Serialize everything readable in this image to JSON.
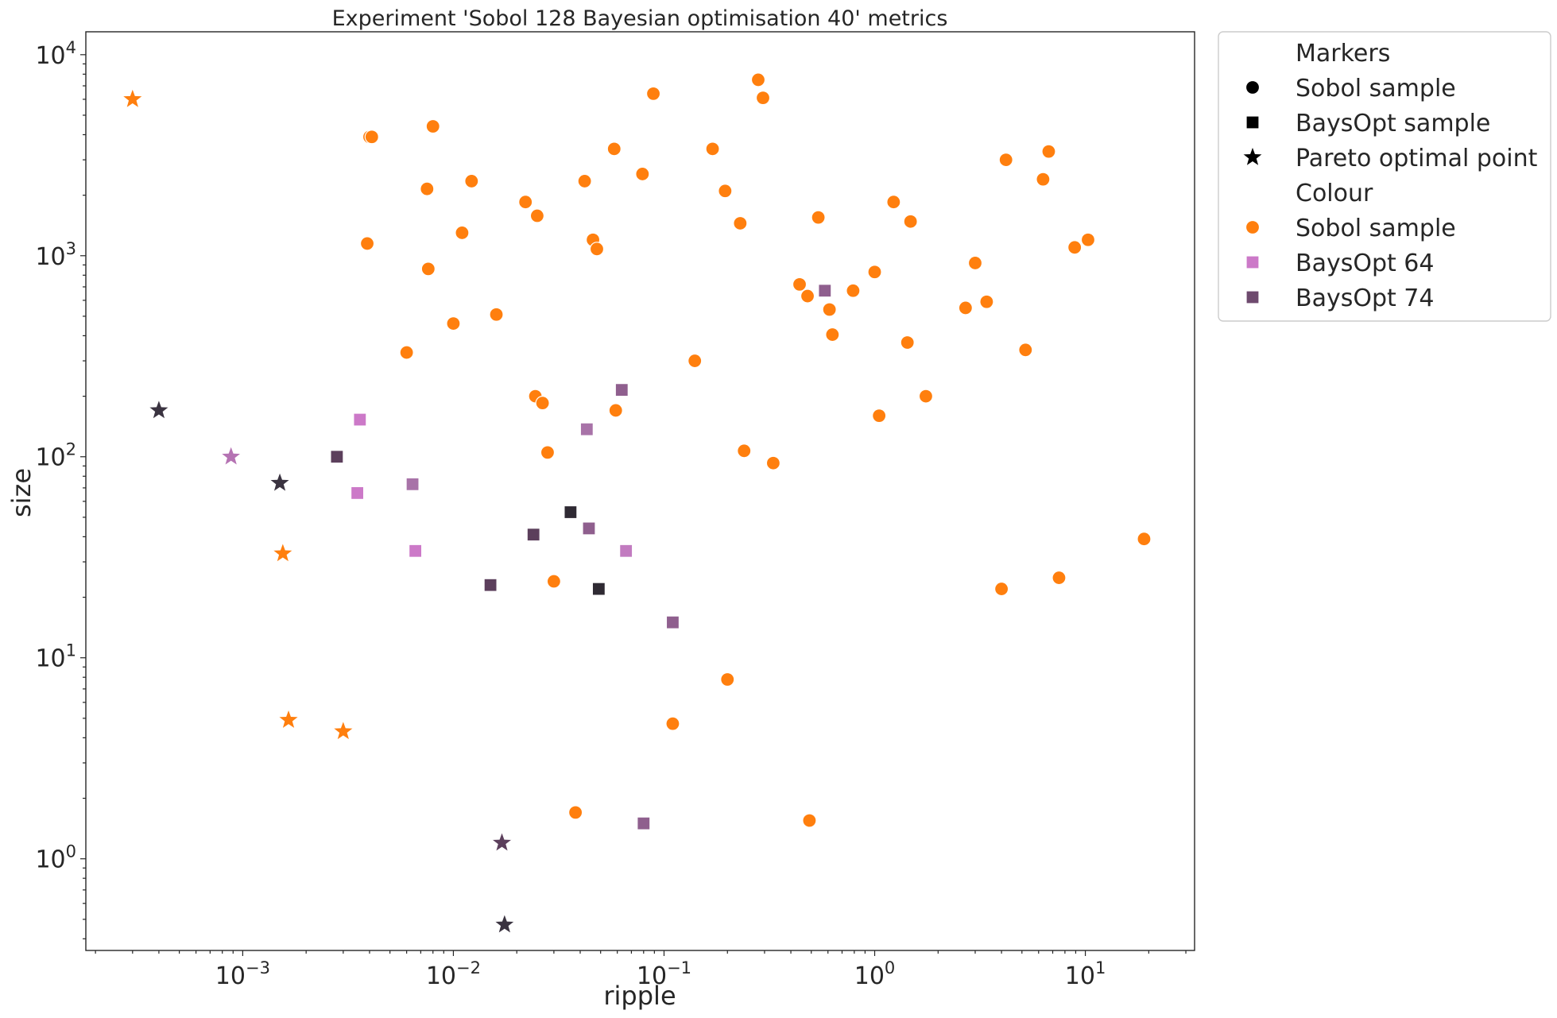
{
  "chart_data": {
    "type": "scatter",
    "title": "Experiment 'Sobol 128 Bayesian optimisation 40' metrics",
    "xlabel": "ripple",
    "ylabel": "size",
    "xscale": "log",
    "yscale": "log",
    "xlim": [
      0.00018,
      33
    ],
    "ylim": [
      0.35,
      13000
    ],
    "xticks": [
      {
        "value": 0.001,
        "base": "10",
        "exp": "−3"
      },
      {
        "value": 0.01,
        "base": "10",
        "exp": "−2"
      },
      {
        "value": 0.1,
        "base": "10",
        "exp": "−1"
      },
      {
        "value": 1,
        "base": "10",
        "exp": "0"
      },
      {
        "value": 10,
        "base": "10",
        "exp": "1"
      }
    ],
    "yticks": [
      {
        "value": 1,
        "base": "10",
        "exp": "0"
      },
      {
        "value": 10,
        "base": "10",
        "exp": "1"
      },
      {
        "value": 100,
        "base": "10",
        "exp": "2"
      },
      {
        "value": 1000,
        "base": "10",
        "exp": "3"
      },
      {
        "value": 10000,
        "base": "10",
        "exp": "4"
      }
    ],
    "grid": false,
    "legend": {
      "placement": "outside-top-right",
      "entries": [
        {
          "label": "Markers",
          "kind": "header"
        },
        {
          "label": "Sobol sample",
          "kind": "marker",
          "marker": "circle",
          "color": "#000000"
        },
        {
          "label": "BaysOpt sample",
          "kind": "marker",
          "marker": "square",
          "color": "#000000"
        },
        {
          "label": "Pareto optimal point",
          "kind": "marker",
          "marker": "star",
          "color": "#000000"
        },
        {
          "label": "Colour",
          "kind": "header"
        },
        {
          "label": "Sobol sample",
          "kind": "marker",
          "marker": "circle",
          "color": "#ff7f0e"
        },
        {
          "label": "BaysOpt 64",
          "kind": "marker",
          "marker": "square",
          "color": "#cc79c8"
        },
        {
          "label": "BaysOpt 74",
          "kind": "marker",
          "marker": "square",
          "color": "#6e4a6e"
        }
      ]
    },
    "series": [
      {
        "group": "Sobol sample",
        "marker": "circle",
        "color": "#ff7f0e",
        "points": [
          [
            0.004,
            3900
          ],
          [
            0.0041,
            3900
          ],
          [
            0.008,
            4400
          ],
          [
            0.0075,
            2150
          ],
          [
            0.0039,
            1150
          ],
          [
            0.0076,
            860
          ],
          [
            0.006,
            330
          ],
          [
            0.01,
            460
          ],
          [
            0.011,
            1300
          ],
          [
            0.0122,
            2350
          ],
          [
            0.016,
            510
          ],
          [
            0.022,
            1850
          ],
          [
            0.025,
            1580
          ],
          [
            0.0245,
            200
          ],
          [
            0.0265,
            185
          ],
          [
            0.028,
            105
          ],
          [
            0.03,
            24
          ],
          [
            0.038,
            1.7
          ],
          [
            0.042,
            2350
          ],
          [
            0.046,
            1200
          ],
          [
            0.048,
            1080
          ],
          [
            0.058,
            3400
          ],
          [
            0.059,
            170
          ],
          [
            0.079,
            2550
          ],
          [
            0.089,
            6400
          ],
          [
            0.11,
            4.7
          ],
          [
            0.14,
            300
          ],
          [
            0.17,
            3400
          ],
          [
            0.2,
            7.8
          ],
          [
            0.195,
            2100
          ],
          [
            0.23,
            1450
          ],
          [
            0.24,
            107
          ],
          [
            0.28,
            7500
          ],
          [
            0.295,
            6100
          ],
          [
            0.33,
            93
          ],
          [
            0.44,
            720
          ],
          [
            0.48,
            630
          ],
          [
            0.49,
            1.55
          ],
          [
            0.54,
            1550
          ],
          [
            0.61,
            540
          ],
          [
            0.63,
            405
          ],
          [
            0.79,
            670
          ],
          [
            1.0,
            830
          ],
          [
            1.05,
            160
          ],
          [
            1.23,
            1850
          ],
          [
            1.43,
            370
          ],
          [
            1.48,
            1480
          ],
          [
            1.75,
            200
          ],
          [
            2.7,
            550
          ],
          [
            3.0,
            920
          ],
          [
            3.4,
            590
          ],
          [
            4.0,
            22
          ],
          [
            4.2,
            3000
          ],
          [
            5.2,
            340
          ],
          [
            6.3,
            2400
          ],
          [
            6.7,
            3300
          ],
          [
            7.5,
            25
          ],
          [
            8.9,
            1100
          ],
          [
            10.3,
            1200
          ],
          [
            19.0,
            39
          ]
        ]
      },
      {
        "group": "BaysOpt 64",
        "marker": "square",
        "color": "#cc79c8",
        "points": [
          [
            0.0036,
            153
          ],
          [
            0.0035,
            66
          ],
          [
            0.0066,
            34
          ]
        ]
      },
      {
        "group": "BaysOpt 64",
        "marker": "square",
        "color": "#c27bc0",
        "points": [
          [
            0.066,
            34
          ]
        ]
      },
      {
        "group": "BaysOpt 74",
        "marker": "square",
        "color": "#a873a8",
        "points": [
          [
            0.0064,
            73
          ],
          [
            0.043,
            137
          ]
        ]
      },
      {
        "group": "BaysOpt 74",
        "marker": "square",
        "color": "#8f5f8e",
        "points": [
          [
            0.063,
            215
          ],
          [
            0.044,
            44
          ],
          [
            0.58,
            670
          ],
          [
            0.08,
            1.5
          ],
          [
            0.11,
            15
          ]
        ]
      },
      {
        "group": "BaysOpt 74",
        "marker": "square",
        "color": "#5c3f5c",
        "points": [
          [
            0.0028,
            100
          ],
          [
            0.024,
            41
          ],
          [
            0.015,
            23
          ]
        ]
      },
      {
        "group": "BaysOpt 74",
        "marker": "square",
        "color": "#2f2a33",
        "points": [
          [
            0.036,
            53
          ],
          [
            0.049,
            22
          ]
        ]
      },
      {
        "group": "Pareto optimal point",
        "marker": "star",
        "color": "#ff7f0e",
        "points": [
          [
            0.0003,
            6000
          ],
          [
            0.00155,
            33
          ],
          [
            0.00165,
            4.9
          ],
          [
            0.003,
            4.3
          ]
        ]
      },
      {
        "group": "Pareto optimal point",
        "marker": "star",
        "color": "#b573b3",
        "points": [
          [
            0.00088,
            100
          ]
        ]
      },
      {
        "group": "Pareto optimal point",
        "marker": "star",
        "color": "#3a3340",
        "points": [
          [
            0.0004,
            170
          ],
          [
            0.0015,
            74
          ],
          [
            0.0175,
            0.47
          ]
        ]
      },
      {
        "group": "Pareto optimal point",
        "marker": "star",
        "color": "#5c3f5c",
        "points": [
          [
            0.017,
            1.2
          ]
        ]
      }
    ]
  }
}
